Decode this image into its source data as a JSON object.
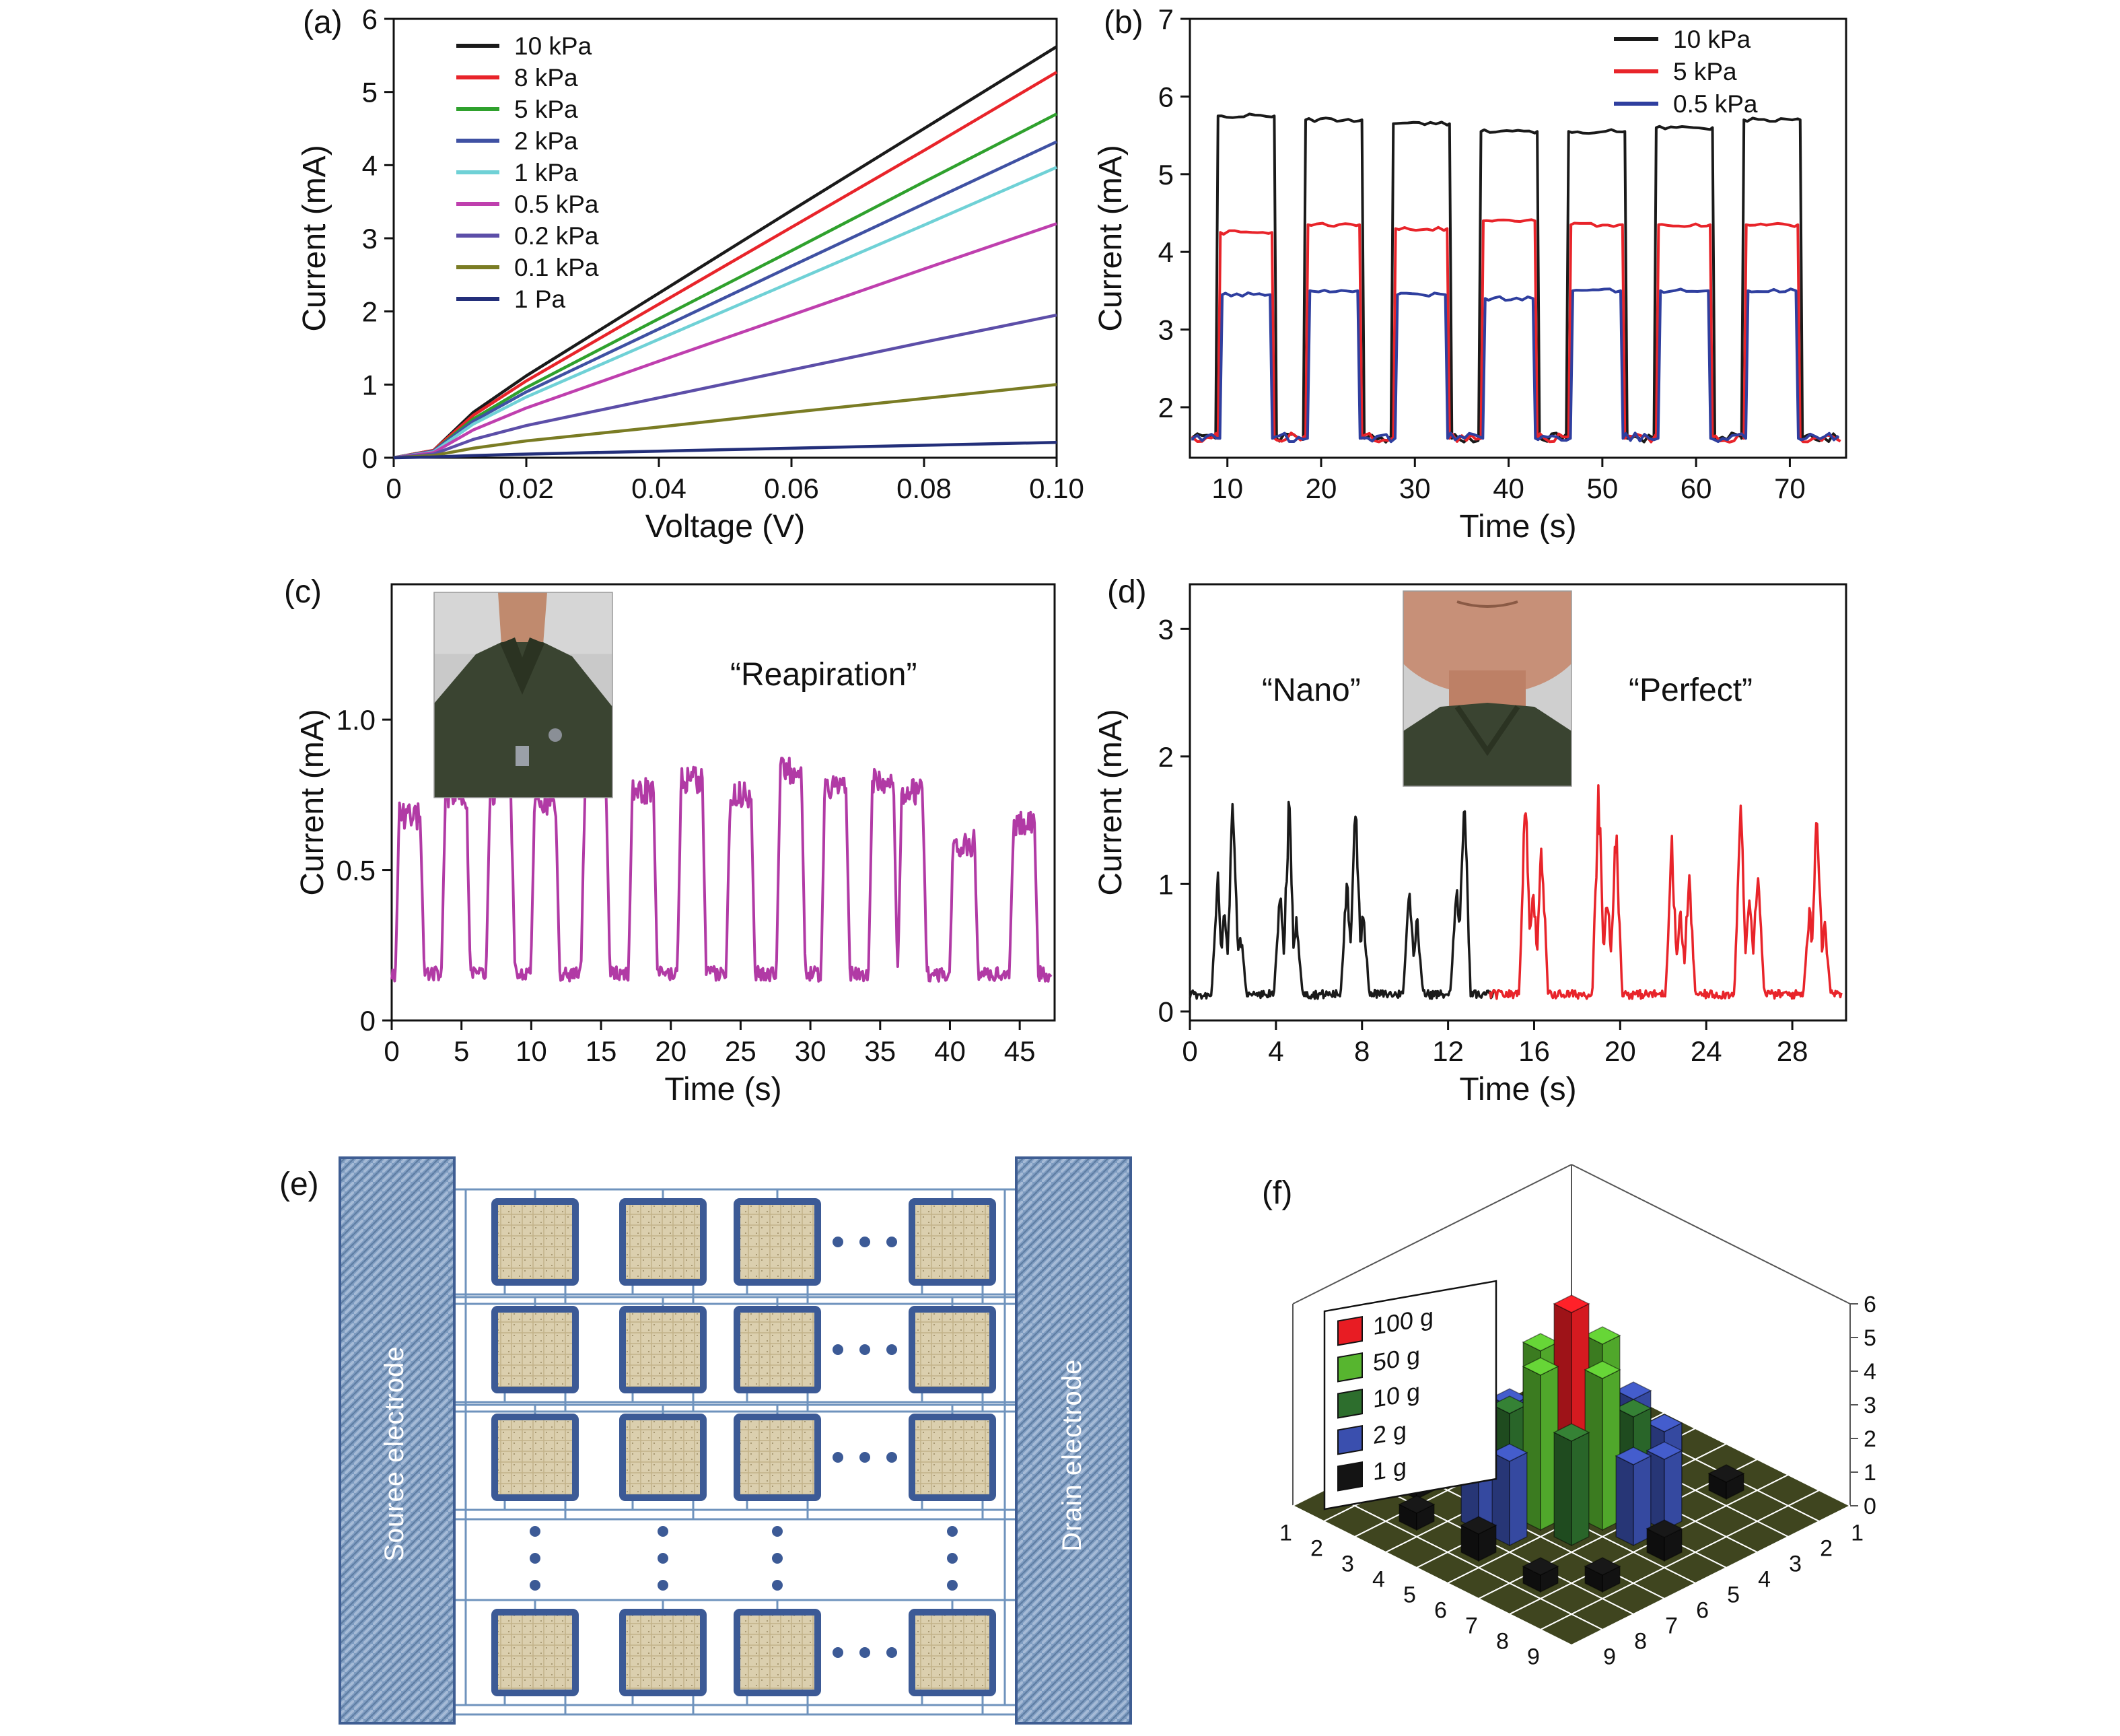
{
  "panels": {
    "a": {
      "label": "(a)"
    },
    "b": {
      "label": "(b)"
    },
    "c": {
      "label": "(c)",
      "annotation": "“Reapiration”"
    },
    "d": {
      "label": "(d)",
      "annotation_left": "“Nano”",
      "annotation_right": "“Perfect”"
    },
    "e": {
      "label": "(e)"
    },
    "f": {
      "label": "(f)"
    }
  },
  "schematic": {
    "source_label": "Souree electrode",
    "drain_label": "Drain electrode",
    "rows": 4,
    "cols": 4,
    "wire_color": "#6f93bd",
    "device_border": "#3c5a96",
    "device_fill": "#dbcfae",
    "electrode_fill": "#7d9bc0"
  },
  "chart_data": [
    {
      "id": "a",
      "type": "line",
      "xlabel": "Voltage (V)",
      "ylabel": "Current (mA)",
      "xlim": [
        0,
        0.1
      ],
      "ylim": [
        0,
        6
      ],
      "xtick_vals": [
        0,
        0.02,
        0.04,
        0.06,
        0.08,
        0.1
      ],
      "xtick_labels": [
        "0",
        "0.02",
        "0.04",
        "0.06",
        "0.08",
        "0.10"
      ],
      "ytick_vals": [
        0,
        1,
        2,
        3,
        4,
        5,
        6
      ],
      "ytick_labels": [
        "0",
        "1",
        "2",
        "3",
        "4",
        "5",
        "6"
      ],
      "legend_position": "top-left",
      "series": [
        {
          "name": "10 kPa",
          "color": "#1a1a1a",
          "points": [
            [
              0,
              0
            ],
            [
              0.006,
              0.1
            ],
            [
              0.012,
              0.62
            ],
            [
              0.02,
              1.12
            ],
            [
              0.04,
              2.25
            ],
            [
              0.06,
              3.38
            ],
            [
              0.08,
              4.5
            ],
            [
              0.1,
              5.62
            ]
          ]
        },
        {
          "name": "8 kPa",
          "color": "#e8242a",
          "points": [
            [
              0,
              0
            ],
            [
              0.006,
              0.1
            ],
            [
              0.012,
              0.58
            ],
            [
              0.02,
              1.05
            ],
            [
              0.04,
              2.1
            ],
            [
              0.06,
              3.15
            ],
            [
              0.08,
              4.2
            ],
            [
              0.1,
              5.27
            ]
          ]
        },
        {
          "name": "5 kPa",
          "color": "#2fa12d",
          "points": [
            [
              0,
              0
            ],
            [
              0.006,
              0.09
            ],
            [
              0.012,
              0.53
            ],
            [
              0.02,
              0.96
            ],
            [
              0.04,
              1.9
            ],
            [
              0.06,
              2.83
            ],
            [
              0.08,
              3.77
            ],
            [
              0.1,
              4.7
            ]
          ]
        },
        {
          "name": "2 kPa",
          "color": "#3f51a3",
          "points": [
            [
              0,
              0
            ],
            [
              0.006,
              0.09
            ],
            [
              0.012,
              0.5
            ],
            [
              0.02,
              0.9
            ],
            [
              0.04,
              1.76
            ],
            [
              0.06,
              2.62
            ],
            [
              0.08,
              3.47
            ],
            [
              0.1,
              4.32
            ]
          ]
        },
        {
          "name": "1 kPa",
          "color": "#6fd1d6",
          "points": [
            [
              0,
              0
            ],
            [
              0.006,
              0.08
            ],
            [
              0.012,
              0.46
            ],
            [
              0.02,
              0.83
            ],
            [
              0.04,
              1.62
            ],
            [
              0.06,
              2.4
            ],
            [
              0.08,
              3.18
            ],
            [
              0.1,
              3.97
            ]
          ]
        },
        {
          "name": "0.5 kPa",
          "color": "#bf3fae",
          "points": [
            [
              0,
              0
            ],
            [
              0.006,
              0.07
            ],
            [
              0.012,
              0.38
            ],
            [
              0.02,
              0.68
            ],
            [
              0.04,
              1.32
            ],
            [
              0.06,
              1.95
            ],
            [
              0.08,
              2.58
            ],
            [
              0.1,
              3.2
            ]
          ]
        },
        {
          "name": "0.2 kPa",
          "color": "#5c4ea8",
          "points": [
            [
              0,
              0
            ],
            [
              0.006,
              0.05
            ],
            [
              0.012,
              0.25
            ],
            [
              0.02,
              0.44
            ],
            [
              0.04,
              0.82
            ],
            [
              0.06,
              1.2
            ],
            [
              0.08,
              1.58
            ],
            [
              0.1,
              1.95
            ]
          ]
        },
        {
          "name": "0.1 kPa",
          "color": "#7a7c24",
          "points": [
            [
              0,
              0
            ],
            [
              0.006,
              0.03
            ],
            [
              0.012,
              0.13
            ],
            [
              0.02,
              0.23
            ],
            [
              0.04,
              0.42
            ],
            [
              0.06,
              0.62
            ],
            [
              0.08,
              0.81
            ],
            [
              0.1,
              1.0
            ]
          ]
        },
        {
          "name": "1 Pa",
          "color": "#232f7a",
          "points": [
            [
              0,
              0
            ],
            [
              0.006,
              0.01
            ],
            [
              0.012,
              0.03
            ],
            [
              0.02,
              0.05
            ],
            [
              0.04,
              0.09
            ],
            [
              0.06,
              0.13
            ],
            [
              0.08,
              0.17
            ],
            [
              0.1,
              0.21
            ]
          ]
        }
      ]
    },
    {
      "id": "b",
      "type": "line",
      "xlabel": "Time (s)",
      "ylabel": "Current (mA)",
      "xlim": [
        6,
        76
      ],
      "ylim": [
        1.35,
        7
      ],
      "xtick_vals": [
        10,
        20,
        30,
        40,
        50,
        60,
        70
      ],
      "xtick_labels": [
        "10",
        "20",
        "30",
        "40",
        "50",
        "60",
        "70"
      ],
      "ytick_vals": [
        2,
        3,
        4,
        5,
        6,
        7
      ],
      "ytick_labels": [
        "2",
        "3",
        "4",
        "5",
        "6",
        "7"
      ],
      "legend_position": "top-right",
      "pulse": {
        "start": 9,
        "period": 9.35,
        "width": 6.0,
        "baseline": 1.55,
        "t_start": 6.3,
        "t_end": 75.5
      },
      "series": [
        {
          "name": "10 kPa",
          "color": "#1a1a1a",
          "inset": -0.25,
          "tops": [
            5.75,
            5.7,
            5.65,
            5.55,
            5.55,
            5.6,
            5.7
          ]
        },
        {
          "name": "5 kPa",
          "color": "#e8242a",
          "inset": 0.0,
          "tops": [
            4.25,
            4.35,
            4.3,
            4.4,
            4.35,
            4.35,
            4.35
          ]
        },
        {
          "name": "0.5 kPa",
          "color": "#2f3f9f",
          "inset": 0.2,
          "tops": [
            3.45,
            3.5,
            3.45,
            3.4,
            3.5,
            3.5,
            3.5
          ]
        }
      ]
    },
    {
      "id": "c",
      "type": "line",
      "xlabel": "Time (s)",
      "ylabel": "Current (mA)",
      "xlim": [
        0,
        47.5
      ],
      "ylim": [
        0,
        1.45
      ],
      "xtick_vals": [
        0,
        5,
        10,
        15,
        20,
        25,
        30,
        35,
        40,
        45
      ],
      "xtick_labels": [
        "0",
        "5",
        "10",
        "15",
        "20",
        "25",
        "30",
        "35",
        "40",
        "45"
      ],
      "ytick_vals": [
        0,
        0.5,
        1.0
      ],
      "ytick_labels": [
        "0",
        "0.5",
        "1.0"
      ],
      "color": "#b13aa5",
      "baseline": 0.13,
      "peaks": [
        {
          "t": 1.3,
          "h": 0.55
        },
        {
          "t": 4.6,
          "h": 0.62
        },
        {
          "t": 7.8,
          "h": 0.63
        },
        {
          "t": 11.0,
          "h": 0.6
        },
        {
          "t": 14.6,
          "h": 0.68
        },
        {
          "t": 18.0,
          "h": 0.63
        },
        {
          "t": 21.5,
          "h": 0.67
        },
        {
          "t": 25.0,
          "h": 0.62
        },
        {
          "t": 28.6,
          "h": 0.7
        },
        {
          "t": 31.8,
          "h": 0.65
        },
        {
          "t": 35.2,
          "h": 0.67
        },
        {
          "t": 37.3,
          "h": 0.63
        },
        {
          "t": 41.0,
          "h": 0.46
        },
        {
          "t": 45.3,
          "h": 0.52
        }
      ]
    },
    {
      "id": "d",
      "type": "line",
      "xlabel": "Time (s)",
      "ylabel": "Current (mA)",
      "xlim": [
        0,
        30.5
      ],
      "ylim": [
        -0.07,
        3.35
      ],
      "xtick_vals": [
        0,
        4,
        8,
        12,
        16,
        20,
        24,
        28
      ],
      "xtick_labels": [
        "0",
        "4",
        "8",
        "12",
        "16",
        "20",
        "24",
        "28"
      ],
      "ytick_vals": [
        0,
        1,
        2,
        3
      ],
      "ytick_labels": [
        "0",
        "1",
        "2",
        "3"
      ],
      "series": [
        {
          "name": "Nano",
          "color": "#1a1a1a",
          "range": [
            0,
            14.2
          ],
          "spikes": [
            [
              1.3,
              0.9
            ],
            [
              1.6,
              0.65
            ],
            [
              2.0,
              1.6
            ],
            [
              2.35,
              0.5
            ],
            [
              4.2,
              0.85
            ],
            [
              4.6,
              1.55
            ],
            [
              4.95,
              0.6
            ],
            [
              7.3,
              0.9
            ],
            [
              7.7,
              1.6
            ],
            [
              8.05,
              0.7
            ],
            [
              10.2,
              0.85
            ],
            [
              10.55,
              0.65
            ],
            [
              12.4,
              0.95
            ],
            [
              12.75,
              1.6
            ]
          ]
        },
        {
          "name": "Perfect",
          "color": "#e8242a",
          "range": [
            13.9,
            30.3
          ],
          "spikes": [
            [
              15.6,
              1.65
            ],
            [
              15.95,
              0.9
            ],
            [
              16.35,
              1.2
            ],
            [
              19.0,
              1.6
            ],
            [
              19.4,
              0.8
            ],
            [
              19.8,
              1.35
            ],
            [
              22.4,
              1.2
            ],
            [
              22.8,
              0.7
            ],
            [
              23.2,
              0.95
            ],
            [
              25.6,
              1.5
            ],
            [
              26.0,
              0.8
            ],
            [
              26.4,
              1.1
            ],
            [
              28.8,
              0.7
            ],
            [
              29.15,
              1.55
            ],
            [
              29.5,
              0.6
            ]
          ]
        }
      ]
    },
    {
      "id": "f",
      "type": "bar3d",
      "grid": 9,
      "ztick_vals": [
        0,
        1,
        2,
        3,
        4,
        5,
        6
      ],
      "ztick_labels": [
        "0",
        "1",
        "2",
        "3",
        "4",
        "5",
        "6"
      ],
      "x_labels": [
        "1",
        "2",
        "3",
        "4",
        "5",
        "6",
        "7",
        "8",
        "9"
      ],
      "y_labels": [
        "1",
        "2",
        "3",
        "4",
        "5",
        "6",
        "7",
        "8",
        "9"
      ],
      "floor_color": "#3f451f",
      "legend": [
        {
          "label": "100 g",
          "color": "#e81c23"
        },
        {
          "label": "50 g",
          "color": "#57b52f"
        },
        {
          "label": "10 g",
          "color": "#2d6e2d"
        },
        {
          "label": "2 g",
          "color": "#3a4fae"
        },
        {
          "label": "1 g",
          "color": "#141414"
        }
      ],
      "bars": [
        {
          "x": 5,
          "y": 5,
          "h": 6.0,
          "w": "100 g"
        },
        {
          "x": 5,
          "y": 4,
          "h": 4.6,
          "w": "50 g"
        },
        {
          "x": 4,
          "y": 5,
          "h": 4.4,
          "w": "50 g"
        },
        {
          "x": 6,
          "y": 5,
          "h": 4.5,
          "w": "50 g"
        },
        {
          "x": 5,
          "y": 6,
          "h": 4.6,
          "w": "50 g"
        },
        {
          "x": 4,
          "y": 4,
          "h": 3.1,
          "w": "10 g"
        },
        {
          "x": 6,
          "y": 4,
          "h": 2.9,
          "w": "10 g"
        },
        {
          "x": 4,
          "y": 6,
          "h": 3.0,
          "w": "10 g"
        },
        {
          "x": 6,
          "y": 6,
          "h": 3.1,
          "w": "10 g"
        },
        {
          "x": 5,
          "y": 3,
          "h": 2.5,
          "w": "2 g"
        },
        {
          "x": 3,
          "y": 5,
          "h": 2.3,
          "w": "2 g"
        },
        {
          "x": 7,
          "y": 5,
          "h": 2.4,
          "w": "2 g"
        },
        {
          "x": 5,
          "y": 7,
          "h": 2.5,
          "w": "2 g"
        },
        {
          "x": 3,
          "y": 4,
          "h": 2.0,
          "w": "2 g"
        },
        {
          "x": 7,
          "y": 4,
          "h": 2.1,
          "w": "2 g"
        },
        {
          "x": 4,
          "y": 7,
          "h": 2.1,
          "w": "2 g"
        },
        {
          "x": 6,
          "y": 3,
          "h": 2.0,
          "w": "2 g"
        },
        {
          "x": 5,
          "y": 2,
          "h": 0.8,
          "w": "1 g"
        },
        {
          "x": 2,
          "y": 5,
          "h": 0.7,
          "w": "1 g"
        },
        {
          "x": 8,
          "y": 5,
          "h": 0.7,
          "w": "1 g"
        },
        {
          "x": 5,
          "y": 8,
          "h": 0.8,
          "w": "1 g"
        },
        {
          "x": 3,
          "y": 2,
          "h": 0.5,
          "w": "1 g"
        },
        {
          "x": 2,
          "y": 7,
          "h": 0.5,
          "w": "1 g"
        },
        {
          "x": 7,
          "y": 2,
          "h": 0.5,
          "w": "1 g"
        },
        {
          "x": 8,
          "y": 7,
          "h": 0.5,
          "w": "1 g"
        },
        {
          "x": 3,
          "y": 8,
          "h": 0.5,
          "w": "1 g"
        },
        {
          "x": 7,
          "y": 8,
          "h": 0.5,
          "w": "1 g"
        }
      ]
    }
  ]
}
